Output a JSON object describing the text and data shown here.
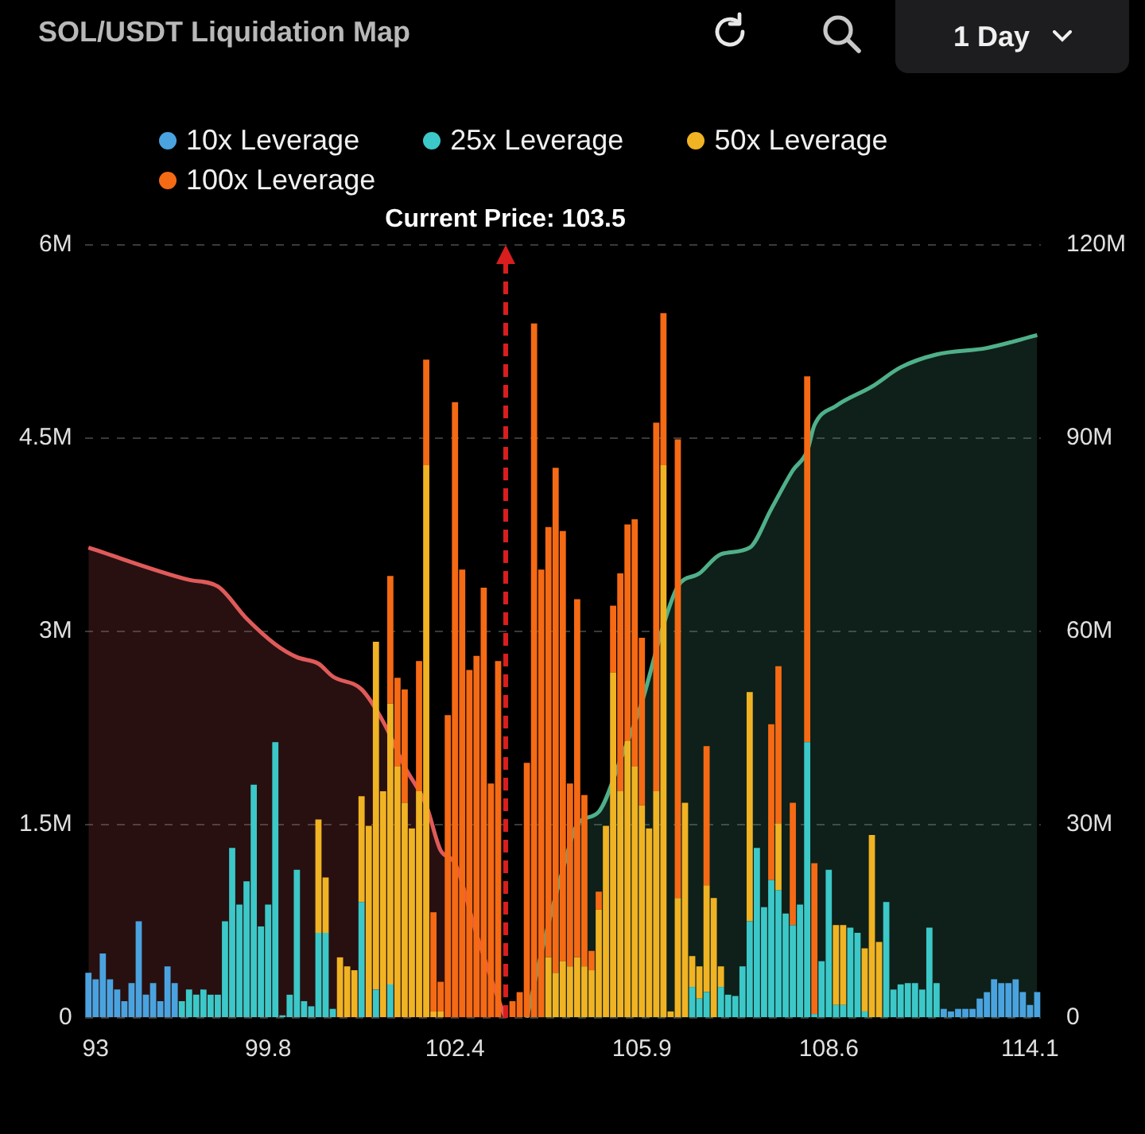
{
  "chart_data": {
    "type": "bar",
    "title": "SOL/USDT Liquidation Map",
    "annotations": [
      "1 Day",
      "Current Price: 103.5"
    ],
    "categories": [
      null,
      "93",
      null,
      null,
      null,
      null,
      null,
      null,
      null,
      null,
      null,
      null,
      null,
      null,
      null,
      null,
      null,
      null,
      null,
      null,
      null,
      null,
      null,
      null,
      null,
      "99.8",
      null,
      null,
      null,
      null,
      null,
      null,
      null,
      null,
      null,
      null,
      null,
      null,
      null,
      null,
      null,
      null,
      null,
      null,
      null,
      null,
      null,
      null,
      null,
      null,
      null,
      "102.4",
      null,
      null,
      null,
      null,
      null,
      null,
      null,
      null,
      null,
      null,
      null,
      null,
      null,
      null,
      null,
      null,
      null,
      null,
      null,
      null,
      null,
      null,
      null,
      null,
      null,
      "105.9",
      null,
      null,
      null,
      null,
      null,
      null,
      null,
      null,
      null,
      null,
      null,
      null,
      null,
      null,
      null,
      null,
      null,
      null,
      null,
      null,
      null,
      null,
      null,
      null,
      null,
      "108.6",
      null,
      null,
      null,
      null,
      null,
      null,
      null,
      null,
      null,
      null,
      null,
      null,
      null,
      null,
      null,
      null,
      null,
      null,
      null,
      null,
      null,
      null,
      null,
      null,
      null,
      null,
      null,
      "114.1",
      null
    ],
    "stacked": true,
    "grid": "y",
    "legend": "top",
    "ylim": [
      0,
      6
    ],
    "yticks": [
      0,
      {
        "value": 1.5,
        "label": "1.5M"
      },
      {
        "value": 3,
        "label": "3M"
      },
      {
        "value": 4.5,
        "label": "4.5M"
      },
      {
        "value": 6,
        "label": "6M"
      }
    ],
    "y2lim": [
      0,
      120
    ],
    "y2ticks": [
      0,
      {
        "value": 30,
        "label": "30M"
      },
      {
        "value": 60,
        "label": "60M"
      },
      {
        "value": 90,
        "label": "90M"
      },
      {
        "value": 120,
        "label": "120M"
      }
    ],
    "series": [
      {
        "name": "10x Leverage",
        "color": "#4aa3df",
        "values": [
          0.35,
          0.3,
          0.5,
          0.3,
          0.22,
          0.13,
          0.27,
          0.75,
          0.18,
          0.27,
          0.13,
          0.4,
          0.27,
          0,
          0,
          0,
          0,
          0,
          0,
          0,
          0,
          0,
          0,
          0,
          0,
          0,
          0,
          0,
          0,
          0,
          0,
          0,
          0,
          0,
          0,
          0,
          0,
          0,
          0,
          0,
          0,
          0,
          0,
          0,
          0,
          0,
          0,
          0,
          0,
          0,
          0,
          0,
          0,
          0,
          0,
          0,
          0,
          0,
          null,
          0,
          0,
          0,
          0,
          0,
          0,
          0,
          0,
          0,
          0,
          0,
          0,
          0,
          0,
          0,
          0,
          0,
          0,
          0,
          0,
          0,
          0,
          0,
          0,
          0,
          0,
          0,
          0,
          0,
          0,
          0,
          0,
          0,
          0,
          0,
          0,
          0,
          0,
          0,
          0,
          0,
          0,
          0,
          0,
          0,
          0,
          0,
          0,
          0,
          0,
          0,
          0,
          0,
          0,
          0,
          0,
          0,
          0,
          0,
          0,
          0.07,
          0.05,
          0.07,
          0.07,
          0.07,
          0.15,
          0.2,
          0.3,
          0.27,
          0.27,
          0.3,
          0.2,
          0.1,
          0.2
        ]
      },
      {
        "name": "25x Leverage",
        "color": "#3cc8c8",
        "values": [
          0,
          0,
          0,
          0,
          0,
          0,
          0,
          0,
          0,
          0,
          0,
          0,
          0,
          0.13,
          0.22,
          0.18,
          0.22,
          0.18,
          0.18,
          0.75,
          1.32,
          0.88,
          1.06,
          1.81,
          0.71,
          0.88,
          2.14,
          0.02,
          0.18,
          1.15,
          0.13,
          0.09,
          0.66,
          0.66,
          0.07,
          0,
          0,
          0,
          0.9,
          0,
          0.22,
          0,
          0.26,
          0,
          0,
          0,
          0,
          0,
          0,
          0,
          0,
          0,
          0,
          0,
          0,
          0,
          0,
          0,
          null,
          0,
          0,
          0,
          0,
          0,
          0,
          0,
          0,
          0,
          0,
          0,
          0,
          0,
          0,
          0,
          0,
          0,
          0,
          0,
          0,
          0,
          0,
          0,
          0,
          0,
          0.24,
          0.15,
          0.2,
          0,
          0.24,
          0.18,
          0.17,
          0.4,
          0.75,
          1.32,
          0.86,
          1.07,
          0.99,
          0.81,
          0.72,
          0.88,
          2.14,
          0.03,
          0.44,
          1.15,
          0.1,
          0.1,
          0.7,
          0.66,
          0.05,
          0,
          0,
          0.9,
          0.22,
          0.26,
          0.27,
          0.27,
          0.22,
          0.7,
          0.27,
          0,
          0,
          0,
          0,
          0,
          0,
          0,
          0,
          0,
          0,
          0,
          0,
          0,
          0
        ]
      },
      {
        "name": "50x Leverage",
        "color": "#f0b323",
        "values": [
          0,
          0,
          0,
          0,
          0,
          0,
          0,
          0,
          0,
          0,
          0,
          0,
          0,
          0,
          0,
          0,
          0,
          0,
          0,
          0,
          0,
          0,
          0,
          0,
          0,
          0,
          0,
          0,
          0,
          0,
          0,
          0,
          0.88,
          0.43,
          0,
          0.47,
          0.4,
          0.37,
          0.82,
          1.49,
          2.7,
          1.76,
          2.18,
          1.95,
          1.67,
          1.47,
          1.76,
          4.29,
          0.05,
          0.05,
          0,
          0,
          0,
          0,
          0,
          0,
          0,
          0,
          null,
          0,
          0,
          0,
          0,
          0,
          0.47,
          0.35,
          0.44,
          0.4,
          0.47,
          0.4,
          0.37,
          0.84,
          1.49,
          2.68,
          1.76,
          2.15,
          1.95,
          1.65,
          1.47,
          1.76,
          4.29,
          0.05,
          0.93,
          1.67,
          0.24,
          0.25,
          0.83,
          0.93,
          0.16,
          0,
          0,
          0,
          1.78,
          0,
          0,
          0,
          0.52,
          0,
          0,
          0,
          0,
          0,
          0,
          0,
          0.62,
          0.62,
          0,
          0,
          0.49,
          1.42,
          0.59,
          0,
          0,
          0,
          0,
          0,
          0,
          0,
          0,
          0,
          0,
          0,
          0,
          0,
          0,
          0,
          0,
          0,
          0,
          0,
          0,
          0,
          0
        ]
      },
      {
        "name": "100x Leverage",
        "color": "#f56a14",
        "values": [
          0,
          0,
          0,
          0,
          0,
          0,
          0,
          0,
          0,
          0,
          0,
          0,
          0,
          0,
          0,
          0,
          0,
          0,
          0,
          0,
          0,
          0,
          0,
          0,
          0,
          0,
          0,
          0,
          0,
          0,
          0,
          0,
          0,
          0,
          0,
          0,
          0,
          0,
          0,
          0,
          0,
          0,
          0.99,
          0.69,
          0.88,
          0,
          1.01,
          0.82,
          0.77,
          0.23,
          2.35,
          4.78,
          3.48,
          2.7,
          2.81,
          3.34,
          1.82,
          2.77,
          null,
          0.13,
          0.2,
          1.98,
          5.39,
          3.48,
          3.34,
          3.92,
          3.34,
          1.42,
          2.78,
          1.33,
          0.15,
          0.14,
          0,
          0.52,
          1.69,
          1.68,
          1.92,
          1.3,
          0,
          2.86,
          1.18,
          0,
          3.56,
          0,
          0,
          0,
          1.08,
          0,
          0,
          0,
          0,
          0,
          0,
          0,
          0,
          1.21,
          1.22,
          0,
          0.95,
          0,
          2.84,
          1.17,
          0,
          0,
          0,
          0,
          0,
          0,
          0,
          0,
          0,
          0,
          0,
          0,
          0,
          0,
          0,
          0,
          0,
          0,
          0,
          0,
          0,
          0,
          0,
          0,
          0,
          0,
          0,
          0,
          0,
          0,
          0
        ]
      },
      {
        "type": "area",
        "axis": "y2",
        "color": "#e05a5a",
        "values": [
          73,
          null,
          null,
          null,
          null,
          null,
          null,
          null,
          null,
          null,
          null,
          null,
          null,
          null,
          68,
          null,
          null,
          null,
          67,
          null,
          null,
          null,
          62,
          null,
          null,
          null,
          58,
          null,
          null,
          56,
          null,
          null,
          55,
          null,
          53,
          null,
          null,
          null,
          51,
          null,
          null,
          46,
          null,
          null,
          39,
          null,
          null,
          33,
          null,
          26,
          null,
          24,
          null,
          null,
          13,
          null,
          null,
          3,
          0,
          null,
          null,
          null,
          null,
          null,
          null,
          null,
          null,
          null,
          null,
          null,
          null,
          null,
          null,
          null,
          null,
          null,
          null,
          null,
          null,
          null,
          null,
          null,
          null,
          null,
          null,
          null,
          null,
          null,
          null,
          null,
          null,
          null,
          null,
          null,
          null,
          null,
          null,
          null,
          null,
          null,
          null,
          null,
          null,
          null,
          null,
          null,
          null,
          null,
          null,
          null,
          null,
          null,
          null,
          null,
          null,
          null,
          null,
          null,
          null,
          null,
          null,
          null,
          null,
          null,
          null,
          null,
          null,
          null,
          null,
          null,
          null,
          null,
          null
        ]
      },
      {
        "type": "area",
        "axis": "y2",
        "color": "#4fb08a",
        "values": [
          null,
          null,
          null,
          null,
          null,
          null,
          null,
          null,
          null,
          null,
          null,
          null,
          null,
          null,
          null,
          null,
          null,
          null,
          null,
          null,
          null,
          null,
          null,
          null,
          null,
          null,
          null,
          null,
          null,
          null,
          null,
          null,
          null,
          null,
          null,
          null,
          null,
          null,
          null,
          null,
          null,
          null,
          null,
          null,
          null,
          null,
          null,
          null,
          null,
          null,
          null,
          null,
          null,
          null,
          null,
          null,
          null,
          null,
          null,
          null,
          null,
          0,
          null,
          10,
          null,
          null,
          23,
          null,
          30,
          null,
          null,
          32,
          null,
          null,
          40,
          null,
          null,
          49,
          null,
          null,
          61,
          null,
          67,
          null,
          null,
          69,
          null,
          null,
          72,
          null,
          null,
          null,
          73,
          null,
          null,
          79,
          null,
          null,
          85,
          null,
          88,
          92,
          null,
          null,
          95,
          null,
          null,
          null,
          null,
          98,
          null,
          null,
          null,
          101,
          null,
          null,
          null,
          null,
          103,
          null,
          null,
          null,
          null,
          null,
          null,
          104,
          null,
          null,
          null,
          null,
          null,
          null,
          106
        ]
      }
    ]
  }
}
